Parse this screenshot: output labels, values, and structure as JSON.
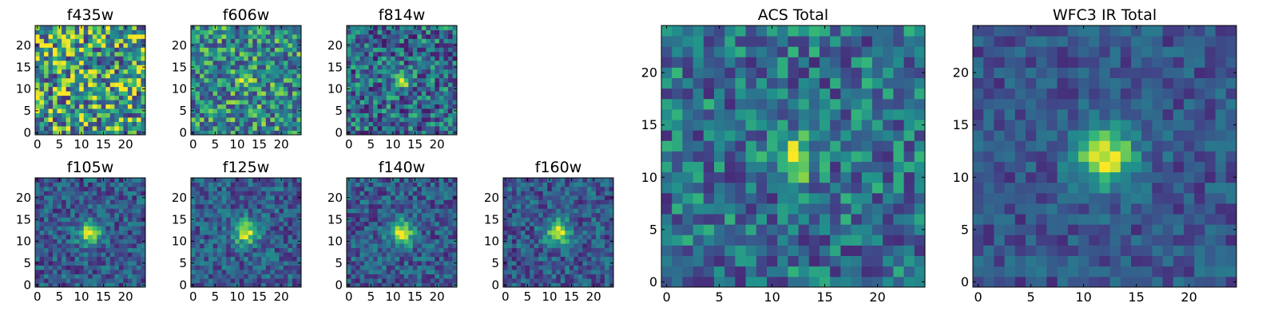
{
  "figure": {
    "colormap": "viridis",
    "background": "#ffffff"
  },
  "chart_data": [
    {
      "type": "heatmap",
      "title": "f435w",
      "grid_size": 25,
      "xlim": [
        0,
        24
      ],
      "ylim": [
        0,
        24
      ],
      "xticks": [
        "0",
        "5",
        "10",
        "15",
        "20"
      ],
      "yticks": [
        "0",
        "5",
        "10",
        "15",
        "20"
      ],
      "source_peak": [
        12,
        12
      ],
      "source_strength": 0.05,
      "source_width": 2.0,
      "noise_level": 0.45,
      "base_level": 0.62,
      "seed": 11
    },
    {
      "type": "heatmap",
      "title": "f606w",
      "grid_size": 25,
      "xlim": [
        0,
        24
      ],
      "ylim": [
        0,
        24
      ],
      "xticks": [
        "0",
        "5",
        "10",
        "15",
        "20"
      ],
      "yticks": [
        "0",
        "5",
        "10",
        "15",
        "20"
      ],
      "source_peak": [
        12,
        12
      ],
      "source_strength": 0.35,
      "source_width": 1.4,
      "noise_level": 0.35,
      "base_level": 0.55,
      "seed": 23
    },
    {
      "type": "heatmap",
      "title": "f814w",
      "grid_size": 25,
      "xlim": [
        0,
        24
      ],
      "ylim": [
        0,
        24
      ],
      "xticks": [
        "0",
        "5",
        "10",
        "15",
        "20"
      ],
      "yticks": [
        "0",
        "5",
        "10",
        "15",
        "20"
      ],
      "source_peak": [
        12,
        12
      ],
      "source_strength": 0.55,
      "source_width": 1.3,
      "noise_level": 0.35,
      "base_level": 0.42,
      "seed": 37
    },
    {
      "type": "heatmap",
      "title": "f105w",
      "grid_size": 25,
      "xlim": [
        0,
        24
      ],
      "ylim": [
        0,
        24
      ],
      "xticks": [
        "0",
        "5",
        "10",
        "15",
        "20"
      ],
      "yticks": [
        "0",
        "5",
        "10",
        "15",
        "20"
      ],
      "source_peak": [
        12,
        12
      ],
      "source_strength": 0.6,
      "source_width": 2.0,
      "noise_level": 0.25,
      "base_level": 0.35,
      "seed": 41
    },
    {
      "type": "heatmap",
      "title": "f125w",
      "grid_size": 25,
      "xlim": [
        0,
        24
      ],
      "ylim": [
        0,
        24
      ],
      "xticks": [
        "0",
        "5",
        "10",
        "15",
        "20"
      ],
      "yticks": [
        "0",
        "5",
        "10",
        "15",
        "20"
      ],
      "source_peak": [
        12,
        12
      ],
      "source_strength": 0.6,
      "source_width": 2.0,
      "noise_level": 0.25,
      "base_level": 0.37,
      "seed": 53
    },
    {
      "type": "heatmap",
      "title": "f140w",
      "grid_size": 25,
      "xlim": [
        0,
        24
      ],
      "ylim": [
        0,
        24
      ],
      "xticks": [
        "0",
        "5",
        "10",
        "15",
        "20"
      ],
      "yticks": [
        "0",
        "5",
        "10",
        "15",
        "20"
      ],
      "source_peak": [
        12,
        12
      ],
      "source_strength": 0.6,
      "source_width": 2.1,
      "noise_level": 0.25,
      "base_level": 0.36,
      "seed": 67
    },
    {
      "type": "heatmap",
      "title": "f160w",
      "grid_size": 25,
      "xlim": [
        0,
        24
      ],
      "ylim": [
        0,
        24
      ],
      "xticks": [
        "0",
        "5",
        "10",
        "15",
        "20"
      ],
      "yticks": [
        "0",
        "5",
        "10",
        "15",
        "20"
      ],
      "source_peak": [
        12,
        12
      ],
      "source_strength": 0.6,
      "source_width": 2.1,
      "noise_level": 0.25,
      "base_level": 0.35,
      "seed": 79
    },
    {
      "type": "heatmap",
      "title": "ACS Total",
      "grid_size": 25,
      "xlim": [
        0,
        24
      ],
      "ylim": [
        0,
        24
      ],
      "xticks": [
        "0",
        "5",
        "10",
        "15",
        "20"
      ],
      "yticks": [
        "0",
        "5",
        "10",
        "15",
        "20"
      ],
      "source_peak": [
        12,
        12
      ],
      "source_strength": 0.5,
      "source_width": 1.5,
      "noise_level": 0.3,
      "base_level": 0.45,
      "seed": 91
    },
    {
      "type": "heatmap",
      "title": "WFC3 IR Total",
      "grid_size": 25,
      "xlim": [
        0,
        24
      ],
      "ylim": [
        0,
        24
      ],
      "xticks": [
        "0",
        "5",
        "10",
        "15",
        "20"
      ],
      "yticks": [
        "0",
        "5",
        "10",
        "15",
        "20"
      ],
      "source_peak": [
        12,
        12
      ],
      "source_strength": 0.65,
      "source_width": 2.2,
      "noise_level": 0.18,
      "base_level": 0.33,
      "seed": 103
    }
  ]
}
